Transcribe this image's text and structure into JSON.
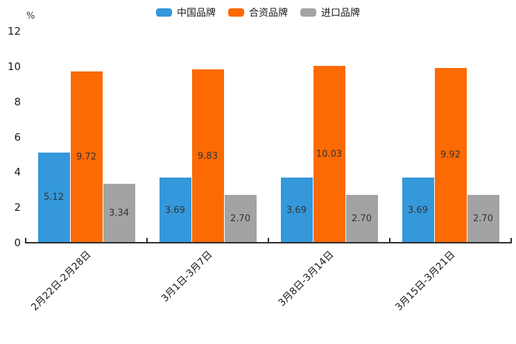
{
  "chart_data": {
    "type": "bar",
    "title": "",
    "xlabel": "",
    "ylabel": "%",
    "categories": [
      "2月22日-2月28日",
      "3月1日-3月7日",
      "3月8日-3月14日",
      "3月15日-3月21日"
    ],
    "series": [
      {
        "name": "中国品牌",
        "color": "#3498DB",
        "values": [
          5.12,
          3.69,
          3.69,
          3.69
        ]
      },
      {
        "name": "合资品牌",
        "color": "#FC6A03",
        "values": [
          9.72,
          9.83,
          10.03,
          9.92
        ]
      },
      {
        "name": "进口品牌",
        "color": "#A3A3A3",
        "values": [
          3.34,
          2.7,
          2.7,
          2.7
        ]
      }
    ],
    "ylim": [
      0,
      12
    ],
    "yticks": [
      0,
      2,
      4,
      6,
      8,
      10,
      12
    ],
    "grid": false,
    "legend_position": "top",
    "value_label_decimals": 2
  },
  "colors": {
    "background": "#FFFFFF",
    "axis": "#2B2B2B",
    "tick_text": "#1A1A1A",
    "value_label_text": "#333333"
  }
}
